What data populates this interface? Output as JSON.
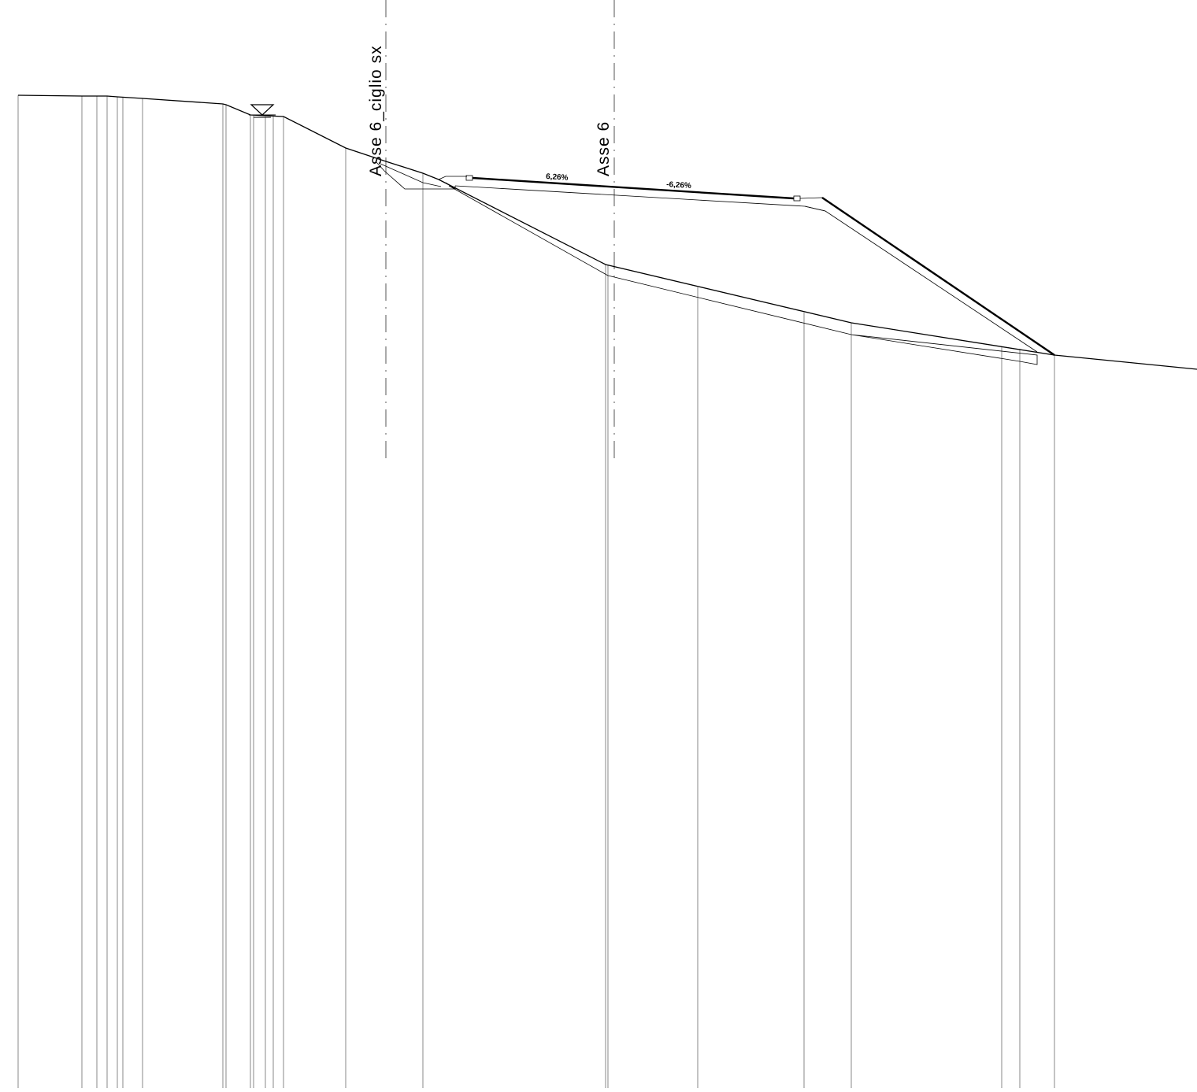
{
  "axes": {
    "left_label": "Asse  6_ciglio  sx",
    "center_label": "Asse  6"
  },
  "slopes": {
    "left": "6,26%",
    "right": "-6,26%"
  },
  "symbols": {
    "water_level": "water-level-triangle-icon"
  },
  "colors": {
    "line": "#000000",
    "background": "#ffffff"
  }
}
